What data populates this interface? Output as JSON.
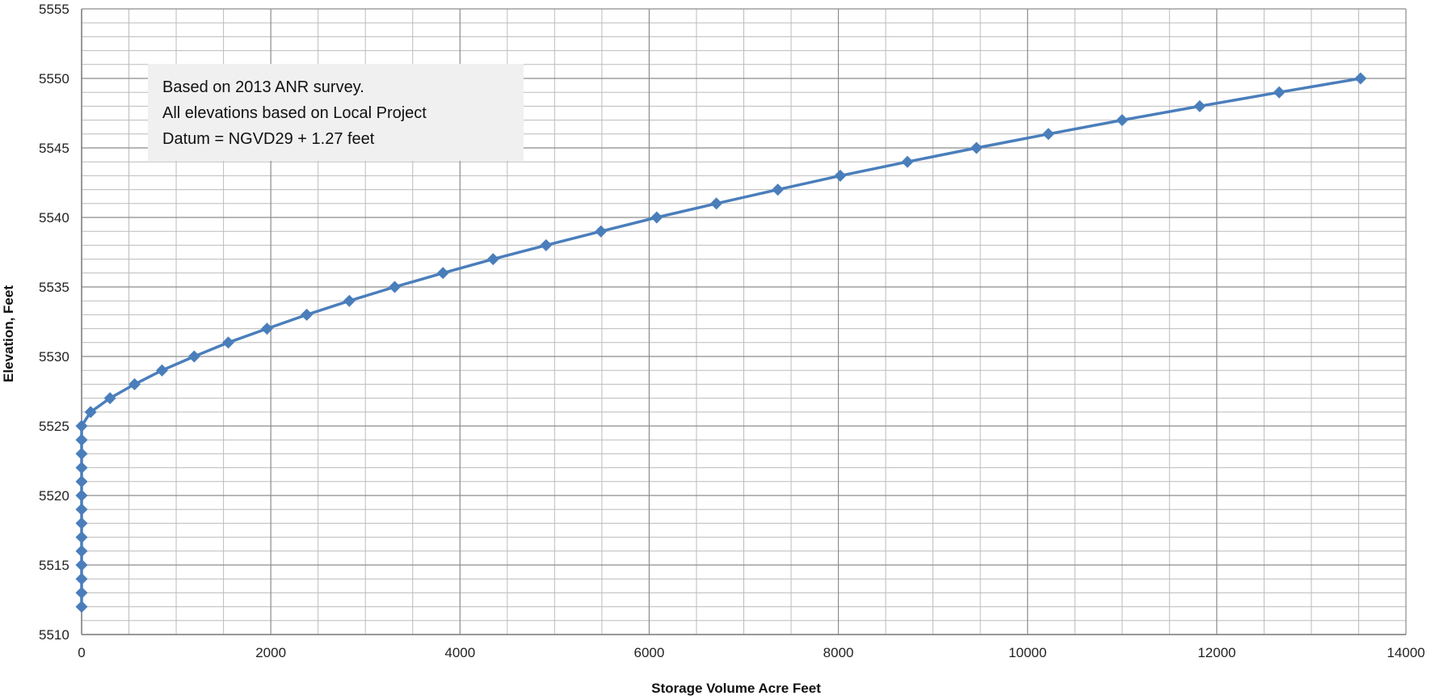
{
  "chart_data": {
    "type": "line",
    "title": "",
    "xlabel": "Storage Volume Acre Feet",
    "ylabel": "Elevation, Feet",
    "xlim": [
      0,
      14000
    ],
    "ylim": [
      5510,
      5555
    ],
    "x_ticks": [
      0,
      2000,
      4000,
      6000,
      8000,
      10000,
      12000,
      14000
    ],
    "y_ticks": [
      5510,
      5515,
      5520,
      5525,
      5530,
      5535,
      5540,
      5545,
      5550,
      5555
    ],
    "x_tick_labels": [
      "0",
      "2000",
      "4000",
      "6000",
      "8000",
      "10000",
      "12000",
      "14000"
    ],
    "y_tick_labels": [
      "5510",
      "5515",
      "5520",
      "5525",
      "5530",
      "5535",
      "5540",
      "5545",
      "5550",
      "5555"
    ],
    "x_minor_step": 500,
    "y_minor_step": 1,
    "grid": true,
    "legend": "none",
    "annotations": [
      "Based on 2013 ANR survey.",
      "All elevations based on Local Project",
      "Datum = NGVD29 + 1.27 feet"
    ],
    "series": [
      {
        "color": "#4a7ebb",
        "marker": "diamond",
        "x": [
          0,
          0,
          0,
          0,
          0,
          0,
          0,
          0,
          0,
          0,
          0,
          0,
          0,
          0,
          95,
          300,
          560,
          850,
          1190,
          1550,
          1960,
          2380,
          2830,
          3310,
          3820,
          4350,
          4910,
          5490,
          6080,
          6710,
          7360,
          8020,
          8730,
          9460,
          10220,
          11000,
          11820,
          12660,
          13520
        ],
        "y": [
          5512,
          5513,
          5514,
          5515,
          5516,
          5517,
          5518,
          5519,
          5520,
          5521,
          5522,
          5523,
          5524,
          5525,
          5526,
          5527,
          5528,
          5529,
          5530,
          5531,
          5532,
          5533,
          5534,
          5535,
          5536,
          5537,
          5538,
          5539,
          5540,
          5541,
          5542,
          5543,
          5544,
          5545,
          5546,
          5547,
          5548,
          5549,
          5550
        ]
      }
    ]
  }
}
